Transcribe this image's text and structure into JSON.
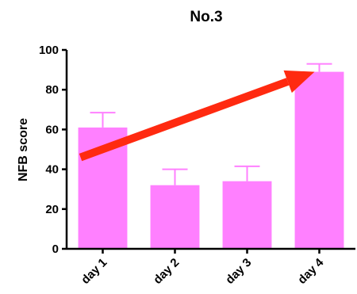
{
  "chart_data": {
    "type": "bar",
    "title": "No.3",
    "xlabel": "",
    "ylabel": "NFB score",
    "ylim": [
      0,
      100
    ],
    "yticks": [
      0,
      20,
      40,
      60,
      80,
      100
    ],
    "categories": [
      "day 1",
      "day 2",
      "day 3",
      "day 4"
    ],
    "values": [
      61,
      32,
      34,
      89
    ],
    "error_upper": [
      68.5,
      40,
      41.5,
      93
    ],
    "grid": false,
    "legend": "none",
    "bar_color": "#ff80ff",
    "annotations": [
      {
        "type": "arrow",
        "color": "#ff2a10",
        "from": {
          "category": "day 1",
          "value": 46
        },
        "to": {
          "category": "day 4",
          "value": 89
        }
      }
    ]
  }
}
